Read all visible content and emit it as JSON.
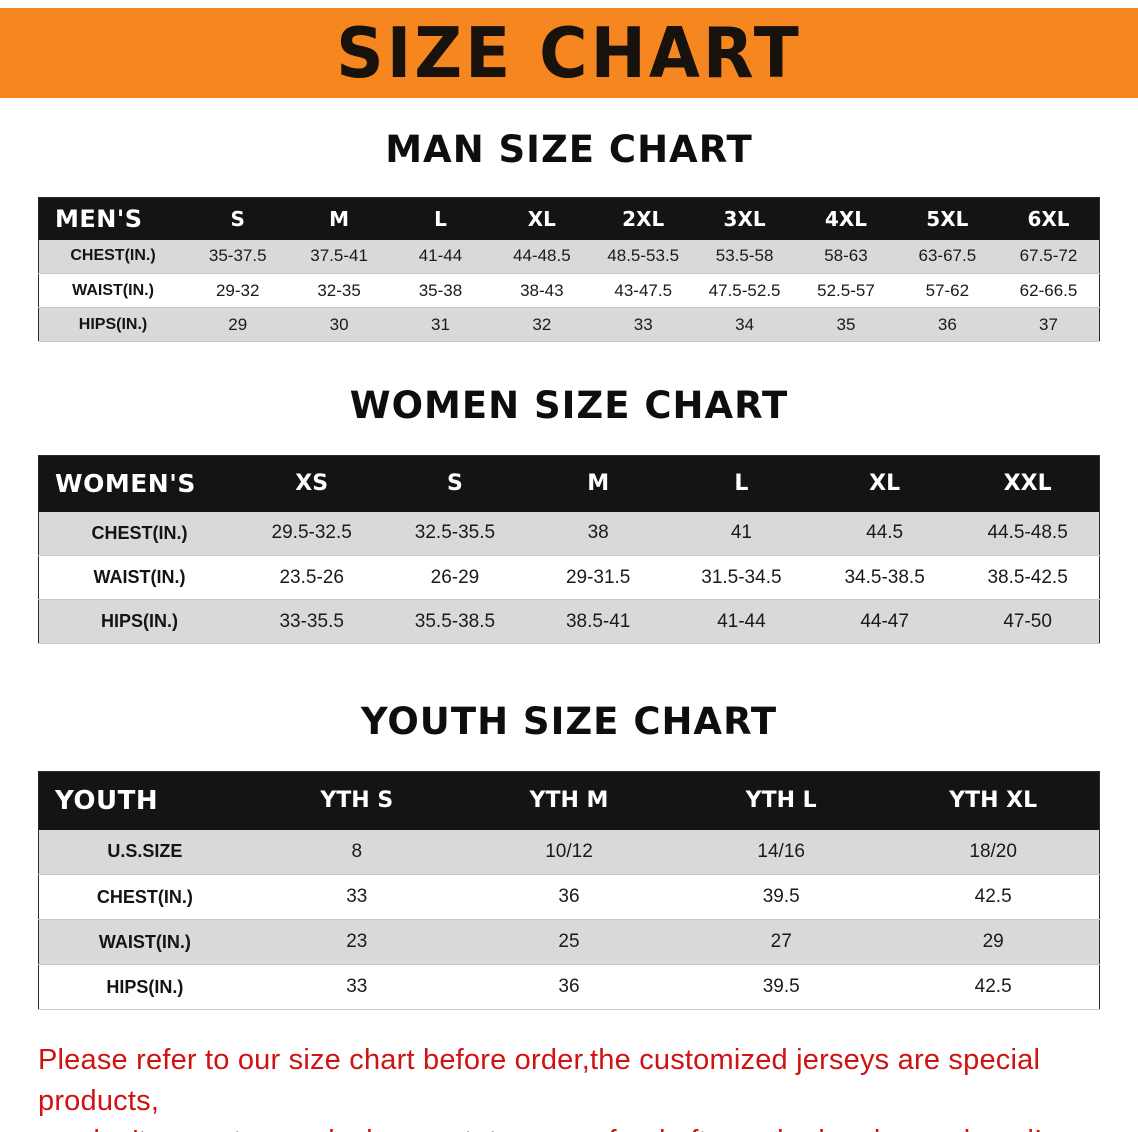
{
  "banner": {
    "title": "SIZE CHART",
    "bg_color": "#f6861f",
    "text_color": "#17120c"
  },
  "sections": [
    {
      "heading": "MAN SIZE CHART",
      "table_name": "men-size-table",
      "table": {
        "header": [
          "MEN'S",
          "S",
          "M",
          "L",
          "XL",
          "2XL",
          "3XL",
          "4XL",
          "5XL",
          "6XL"
        ],
        "rows": [
          {
            "label": "CHEST(IN.)",
            "values": [
              "35-37.5",
              "37.5-41",
              "41-44",
              "44-48.5",
              "48.5-53.5",
              "53.5-58",
              "58-63",
              "63-67.5",
              "67.5-72"
            ]
          },
          {
            "label": "WAIST(IN.)",
            "values": [
              "29-32",
              "32-35",
              "35-38",
              "38-43",
              "43-47.5",
              "47.5-52.5",
              "52.5-57",
              "57-62",
              "62-66.5"
            ]
          },
          {
            "label": "HIPS(IN.)",
            "values": [
              "29",
              "30",
              "31",
              "32",
              "33",
              "34",
              "35",
              "36",
              "37"
            ]
          }
        ]
      }
    },
    {
      "heading": "WOMEN SIZE CHART",
      "table_name": "women-size-table",
      "table": {
        "header": [
          "WOMEN'S",
          "XS",
          "S",
          "M",
          "L",
          "XL",
          "XXL"
        ],
        "rows": [
          {
            "label": "CHEST(IN.)",
            "values": [
              "29.5-32.5",
              "32.5-35.5",
              "38",
              "41",
              "44.5",
              "44.5-48.5"
            ]
          },
          {
            "label": "WAIST(IN.)",
            "values": [
              "23.5-26",
              "26-29",
              "29-31.5",
              "31.5-34.5",
              "34.5-38.5",
              "38.5-42.5"
            ]
          },
          {
            "label": "HIPS(IN.)",
            "values": [
              "33-35.5",
              "35.5-38.5",
              "38.5-41",
              "41-44",
              "44-47",
              "47-50"
            ]
          }
        ]
      }
    },
    {
      "heading": "YOUTH SIZE CHART",
      "table_name": "youth-size-table",
      "table": {
        "header": [
          "YOUTH",
          "YTH S",
          "YTH M",
          "YTH L",
          "YTH XL"
        ],
        "rows": [
          {
            "label": "U.S.SIZE",
            "values": [
              "8",
              "10/12",
              "14/16",
              "18/20"
            ]
          },
          {
            "label": "CHEST(IN.)",
            "values": [
              "33",
              "36",
              "39.5",
              "42.5"
            ]
          },
          {
            "label": "WAIST(IN.)",
            "values": [
              "23",
              "25",
              "27",
              "29"
            ]
          },
          {
            "label": "HIPS(IN.)",
            "values": [
              "33",
              "36",
              "39.5",
              "42.5"
            ]
          }
        ]
      }
    }
  ],
  "footer": {
    "lines": [
      "Please refer to our size chart before order,the customized jerseys are special products,",
      "we don't accept cancel, change, teturn or refund after order has been placed!"
    ],
    "color": "#cf1212"
  }
}
